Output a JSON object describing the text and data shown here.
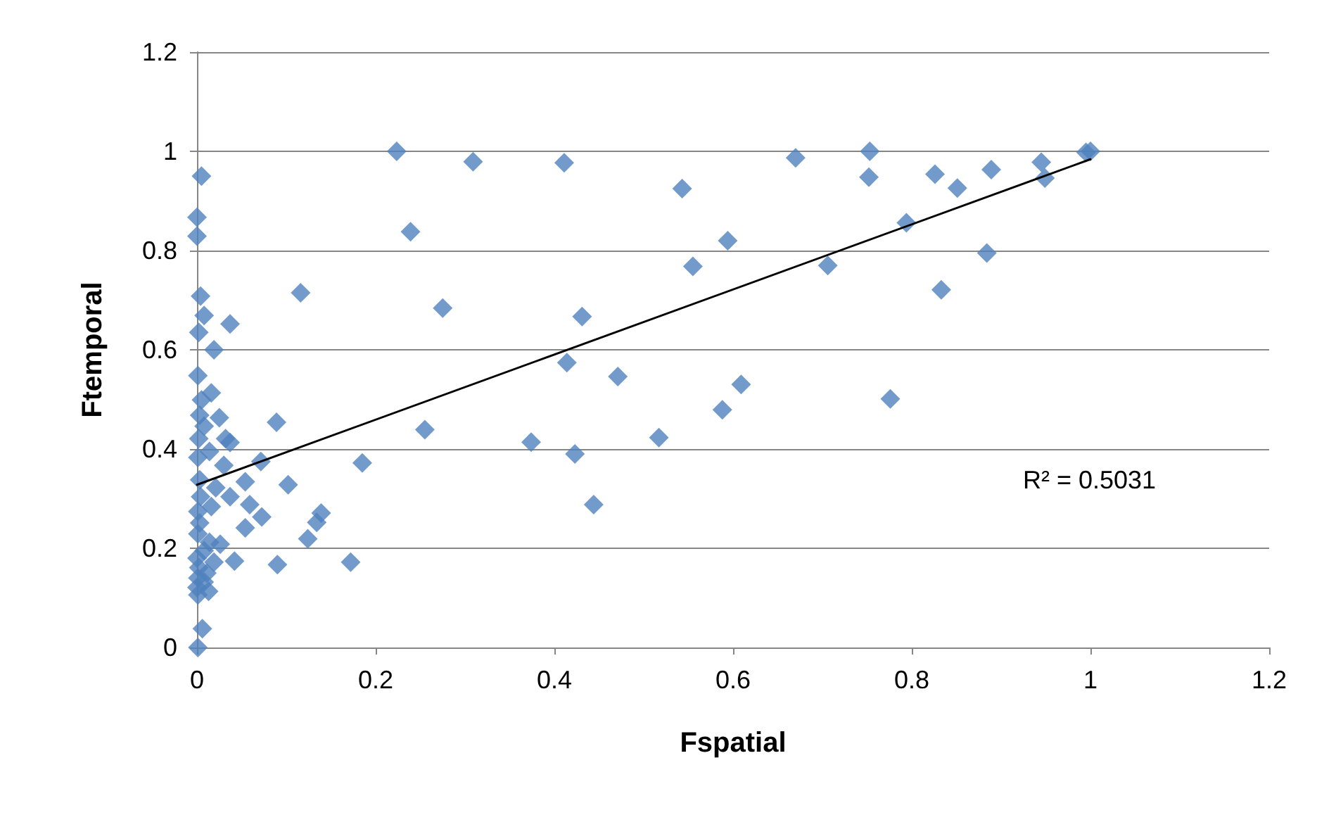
{
  "chart_data": {
    "type": "scatter",
    "xlabel": "Fspatial",
    "ylabel": "Ftemporal",
    "annotations": [
      "R² = 0.5031"
    ],
    "xlim": [
      0,
      1.2
    ],
    "ylim": [
      0,
      1.2
    ],
    "xticks": [
      0,
      0.2,
      0.4,
      0.6,
      0.8,
      1,
      1.2
    ],
    "yticks": [
      0,
      0.2,
      0.4,
      0.6,
      0.8,
      1,
      1.2
    ],
    "grid": "y",
    "marker": "diamond",
    "series": [
      {
        "color": "#4f81bd",
        "x": [
          0.2235,
          0.309,
          0.411,
          0.543,
          0.239,
          0.594,
          0.555,
          0.116,
          0.275,
          0.431,
          0.037,
          0.414,
          0.471,
          0.609,
          0.588,
          0.089,
          0.255,
          0.374,
          0.517,
          0.423,
          0.185,
          0.0715,
          0.102,
          0.444,
          0.139,
          0.134,
          0.124,
          0.054,
          0.0725,
          0.054,
          0.059,
          0.67,
          0.753,
          0.752,
          0.826,
          0.851,
          0.889,
          0.945,
          0.949,
          1.0,
          0.995,
          0.794,
          0.706,
          0.884,
          0.833,
          0.776,
          0.005,
          0.0,
          0.0,
          0.004,
          0.008,
          0.002,
          0.019,
          0.001,
          0.016,
          0.005,
          0.025,
          0.003,
          0.008,
          0.032,
          0.037,
          0.002,
          0.014,
          0.001,
          0.03,
          0.003,
          0.021,
          0.004,
          0.037,
          0.016,
          0.001,
          0.003,
          0.001,
          0.014,
          0.026,
          0.008,
          0.042,
          0.09,
          0.172,
          0.0,
          0.019,
          0.002,
          0.011,
          0.001,
          0.008,
          0.0,
          0.013,
          0.001,
          0.006,
          0.001
        ],
        "values": [
          1.0,
          0.979,
          0.977,
          0.925,
          0.838,
          0.82,
          0.768,
          0.715,
          0.684,
          0.667,
          0.652,
          0.574,
          0.546,
          0.53,
          0.479,
          0.454,
          0.439,
          0.414,
          0.423,
          0.39,
          0.372,
          0.375,
          0.328,
          0.288,
          0.271,
          0.252,
          0.219,
          0.241,
          0.263,
          0.334,
          0.288,
          0.987,
          1.0,
          0.948,
          0.954,
          0.926,
          0.963,
          0.978,
          0.946,
          1.0,
          0.998,
          0.856,
          0.77,
          0.795,
          0.721,
          0.501,
          0.95,
          0.867,
          0.829,
          0.708,
          0.669,
          0.635,
          0.6,
          0.548,
          0.513,
          0.499,
          0.463,
          0.468,
          0.446,
          0.421,
          0.413,
          0.421,
          0.395,
          0.383,
          0.367,
          0.338,
          0.322,
          0.304,
          0.304,
          0.284,
          0.274,
          0.251,
          0.229,
          0.212,
          0.208,
          0.195,
          0.174,
          0.167,
          0.172,
          0.18,
          0.172,
          0.161,
          0.15,
          0.14,
          0.132,
          0.121,
          0.113,
          0.106,
          0.038,
          0.0
        ]
      },
      {
        "type": "line",
        "color": "#000000",
        "marker": "none",
        "x": [
          0,
          1
        ],
        "values": [
          0.328,
          0.984
        ]
      }
    ]
  }
}
